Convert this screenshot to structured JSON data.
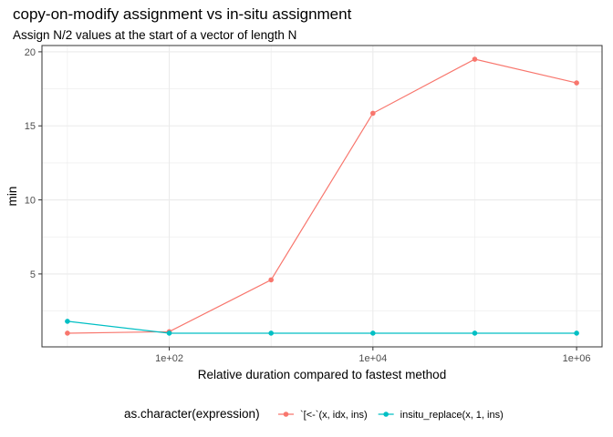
{
  "chart_data": {
    "type": "line",
    "title": "copy-on-modify assignment vs in-situ assignment",
    "subtitle": "Assign N/2 values at the start of a vector of length N",
    "xlabel": "Relative duration compared to fastest method",
    "ylabel": "min",
    "x_scale": "log10",
    "x": [
      10,
      100,
      1000,
      10000,
      100000,
      1000000
    ],
    "xlim": [
      10,
      1000000
    ],
    "x_ticks": [
      100,
      10000,
      1000000
    ],
    "x_tick_labels": [
      "1e+02",
      "1e+04",
      "1e+06"
    ],
    "ylim": [
      0,
      20
    ],
    "y_ticks": [
      5,
      10,
      15,
      20
    ],
    "y_tick_labels": [
      "5",
      "10",
      "15",
      "20"
    ],
    "grid": true,
    "legend": {
      "title": "as.character(expression)",
      "position": "bottom"
    },
    "series": [
      {
        "name": "`[<-`(x, idx, ins)",
        "color": "#F8766D",
        "values": [
          1.0,
          1.1,
          4.6,
          15.85,
          19.5,
          17.9
        ]
      },
      {
        "name": "insitu_replace(x, 1, ins)",
        "color": "#00BFC4",
        "values": [
          1.8,
          1.0,
          1.0,
          1.0,
          1.0,
          1.0
        ]
      }
    ]
  }
}
